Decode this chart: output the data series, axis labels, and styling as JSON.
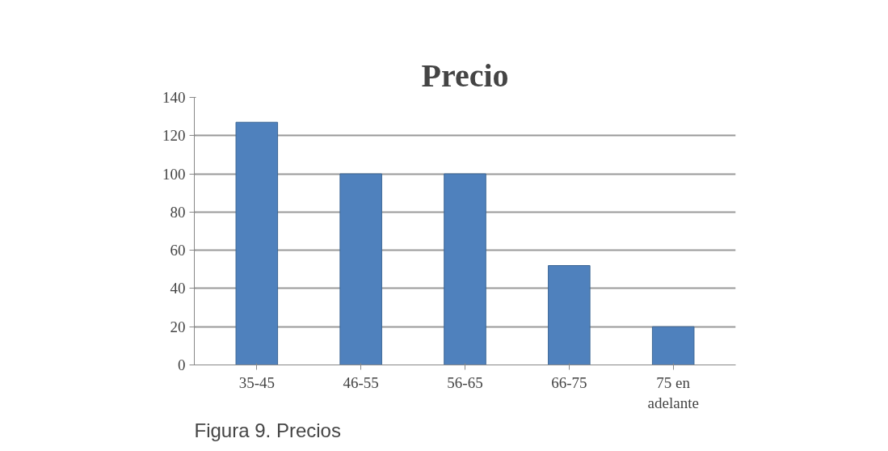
{
  "chart_data": {
    "type": "bar",
    "title": "Precio",
    "categories": [
      "35-45",
      "46-55",
      "56-65",
      "66-75",
      "75 en\nadelante"
    ],
    "values": [
      127,
      100,
      100,
      52,
      20
    ],
    "color": "#4f81bd",
    "ylim": [
      0,
      140
    ],
    "yticks": [
      0,
      20,
      40,
      60,
      80,
      100,
      120,
      140
    ],
    "grid": "y",
    "annotations": [
      "Figura 9. Precios"
    ]
  }
}
